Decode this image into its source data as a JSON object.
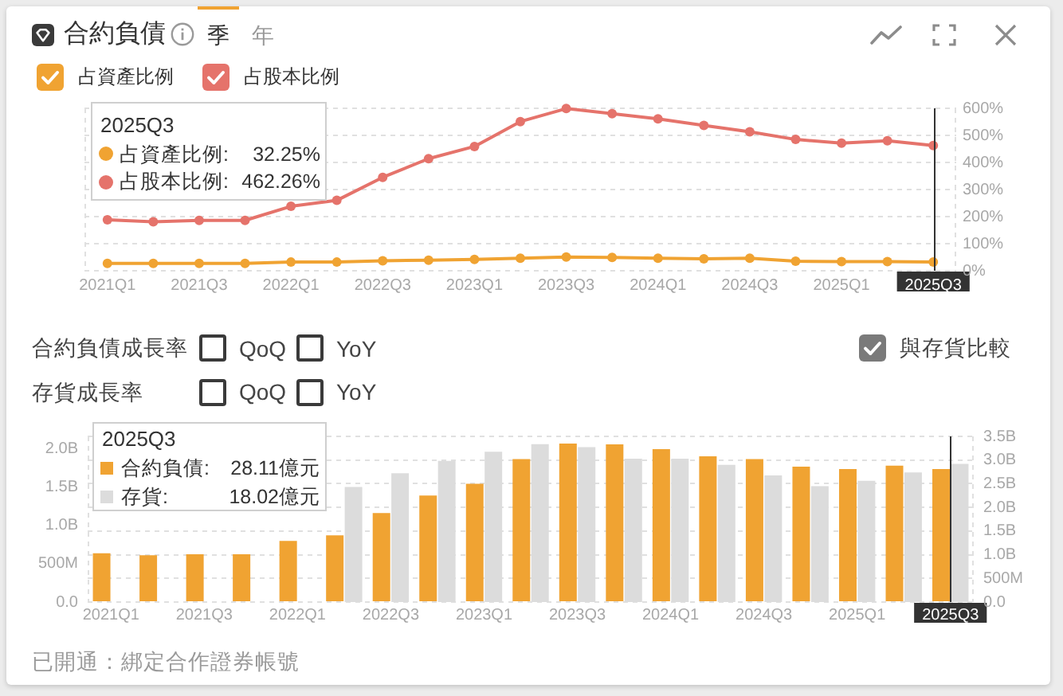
{
  "chart_data": [
    {
      "type": "line",
      "title": "合約負債",
      "annotations": [
        "季",
        "年",
        "2025Q3",
        "占資產比例:",
        "32.25%",
        "占股本比例:",
        "462.26%"
      ],
      "categories": [
        "2021Q1",
        null,
        "2021Q3",
        null,
        "2022Q1",
        null,
        "2022Q3",
        null,
        "2023Q1",
        null,
        "2023Q3",
        null,
        "2024Q1",
        null,
        "2024Q3",
        null,
        "2025Q1",
        null,
        "2025Q3"
      ],
      "series": [
        {
          "name": "占資產比例",
          "color": "#f0a332",
          "values": [
            27,
            27,
            27,
            27,
            32,
            32,
            37,
            39,
            42,
            46,
            51,
            49,
            46,
            44,
            46,
            35,
            34,
            34,
            32.25
          ]
        },
        {
          "name": "占股本比例",
          "color": "#e5736b",
          "values": [
            188,
            181,
            186,
            186,
            238,
            260,
            345,
            414,
            459,
            551,
            599,
            580,
            561,
            537,
            513,
            485,
            471,
            480,
            462.26
          ]
        }
      ],
      "ylim": [
        0,
        600
      ],
      "yticks": [
        {
          "value": 0,
          "label": "0%"
        },
        {
          "value": 100,
          "label": "100%"
        },
        {
          "value": 200,
          "label": "200%"
        },
        {
          "value": 300,
          "label": "300%"
        },
        {
          "value": 400,
          "label": "400%"
        },
        {
          "value": 500,
          "label": "500%"
        },
        {
          "value": 600,
          "label": "600%"
        }
      ],
      "grid": "y",
      "legend": "top left",
      "marker": "circle",
      "ref_lines": [
        {
          "axis": "x",
          "value": "2025Q3",
          "color": "#333333"
        }
      ]
    },
    {
      "type": "other",
      "annotations": [
        "合約負債成長率",
        "QoQ",
        "YoY",
        "存貨成長率",
        "QoQ",
        "YoY",
        "與存貨比較"
      ]
    },
    {
      "type": "bar",
      "annotations": [
        "2025Q3",
        "合約負債:",
        "28.11億元",
        "存貨:",
        "18.02億元",
        "已開通：綁定合作證券帳號"
      ],
      "categories": [
        "2021Q1",
        null,
        "2021Q3",
        null,
        "2022Q1",
        null,
        "2022Q3",
        null,
        "2023Q1",
        null,
        "2023Q3",
        null,
        "2024Q1",
        null,
        "2024Q3",
        null,
        "2025Q1",
        null,
        "2025Q3"
      ],
      "series": [
        {
          "color": "#f0a332",
          "axis": "y2",
          "values": [
            1030000000,
            990000000,
            1010000000,
            1010000000,
            1290000000,
            1410000000,
            1880000000,
            2250000000,
            2500000000,
            3020000000,
            3350000000,
            3330000000,
            3230000000,
            3080000000,
            3020000000,
            2860000000,
            2810000000,
            2880000000,
            2811000000
          ]
        },
        {
          "color": "#dcdcdc",
          "values": [
            null,
            null,
            null,
            null,
            null,
            1500000000,
            1680000000,
            1840000000,
            1960000000,
            2060000000,
            2020000000,
            1870000000,
            1870000000,
            1790000000,
            1650000000,
            1510000000,
            1580000000,
            1690000000,
            1802000000
          ]
        }
      ],
      "ylim": [
        0,
        2160000000
      ],
      "yticks": [
        {
          "value": 0,
          "label": "0.0"
        },
        {
          "value": 500000000,
          "label": "500M"
        },
        {
          "value": 1000000000,
          "label": "1.0B"
        },
        {
          "value": 1500000000,
          "label": "1.5B"
        },
        {
          "value": 2000000000,
          "label": "2.0B"
        }
      ],
      "y2lim": [
        0,
        3500000000
      ],
      "y2ticks": [
        {
          "value": 0,
          "label": "0.0"
        },
        {
          "value": 500000000,
          "label": "500M"
        },
        {
          "value": 1000000000,
          "label": "1.0B"
        },
        {
          "value": 1500000000,
          "label": "1.5B"
        },
        {
          "value": 2000000000,
          "label": "2.0B"
        },
        {
          "value": 2500000000,
          "label": "2.5B"
        },
        {
          "value": 3000000000,
          "label": "3.0B"
        },
        {
          "value": 3500000000,
          "label": "3.5B"
        }
      ],
      "grid": "y",
      "ref_lines": [
        {
          "axis": "x",
          "value": "2025Q3",
          "color": "#333333"
        }
      ]
    }
  ]
}
